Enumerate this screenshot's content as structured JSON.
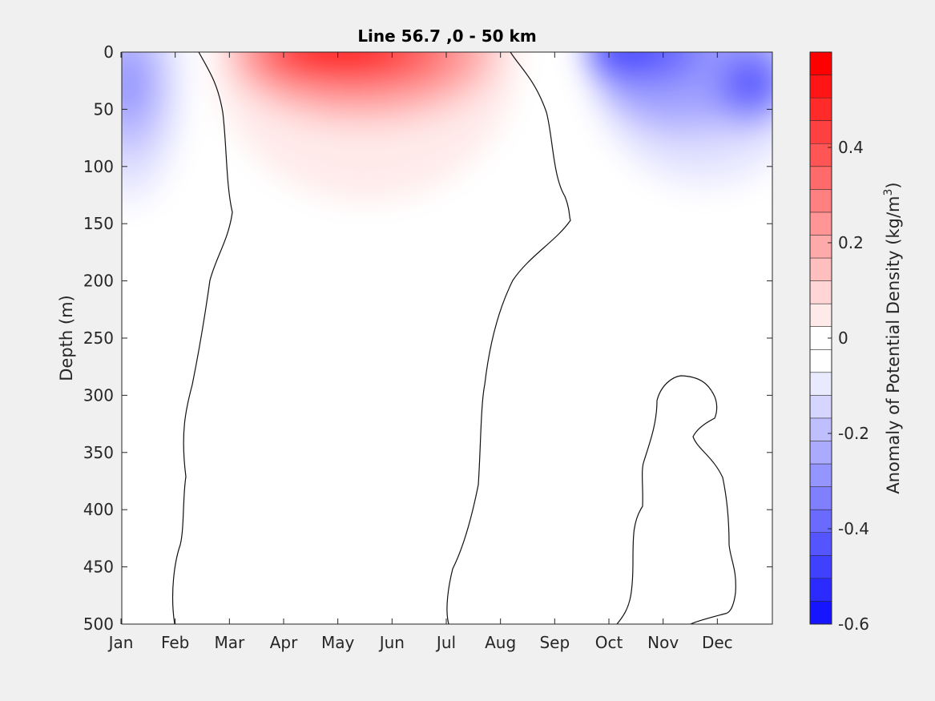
{
  "chart_data": {
    "type": "contourf",
    "title": "Line 56.7 ,0 - 50 km",
    "xlabel": "",
    "ylabel": "Depth (m)",
    "x_ticks": [
      "Jan",
      "Feb",
      "Mar",
      "Apr",
      "May",
      "Jun",
      "Jul",
      "Aug",
      "Sep",
      "Oct",
      "Nov",
      "Dec"
    ],
    "y_ticks": [
      0,
      50,
      100,
      150,
      200,
      250,
      300,
      350,
      400,
      450,
      500
    ],
    "ylim": [
      0,
      500
    ],
    "y_reversed": true,
    "colorbar": {
      "label_main": "Anomaly of Potential Density (kg/m",
      "label_sup": "3",
      "label_close": ")",
      "ticks": [
        "0.4",
        "0.2",
        "0",
        "-0.2",
        "-0.4",
        "-0.6"
      ],
      "tick_values": [
        0.4,
        0.2,
        0,
        -0.2,
        -0.4,
        -0.6
      ],
      "range": [
        -0.6,
        0.6
      ],
      "levels": [
        0.6,
        0.55,
        0.5,
        0.45,
        0.4,
        0.35,
        0.3,
        0.25,
        0.2,
        0.15,
        0.1,
        0.05,
        0,
        -0.05,
        -0.1,
        -0.15,
        -0.2,
        -0.25,
        -0.3,
        -0.35,
        -0.4,
        -0.45,
        -0.5,
        -0.55,
        -0.6
      ],
      "colors": [
        "#ff0000",
        "#ff1515",
        "#ff2b2b",
        "#ff4040",
        "#ff5555",
        "#ff6a6a",
        "#ff8080",
        "#ff9595",
        "#ffaaaa",
        "#ffbfbf",
        "#ffd5d5",
        "#ffeaea",
        "#ffffff",
        "#ffffff",
        "#eaeaff",
        "#d5d5ff",
        "#bfbfff",
        "#aaaaff",
        "#9595ff",
        "#8080ff",
        "#6a6aff",
        "#5555ff",
        "#4040ff",
        "#2b2bff",
        "#1515ff",
        "#0000ff"
      ]
    },
    "features": [
      {
        "name": "positive-anomaly",
        "sign": "+",
        "center_month": 4.8,
        "center_depth_m": 5,
        "peak_value": 0.6
      },
      {
        "name": "negative-anomaly-winter",
        "sign": "-",
        "center_month": 0.3,
        "center_depth_m": 30,
        "peak_value": -0.25
      },
      {
        "name": "negative-anomaly-autumn",
        "sign": "-",
        "center_month": 9.4,
        "center_depth_m": 0,
        "peak_value": -0.5
      },
      {
        "name": "negative-anomaly-december",
        "sign": "-",
        "center_month": 11.3,
        "center_depth_m": 30,
        "peak_value": -0.45
      }
    ]
  }
}
